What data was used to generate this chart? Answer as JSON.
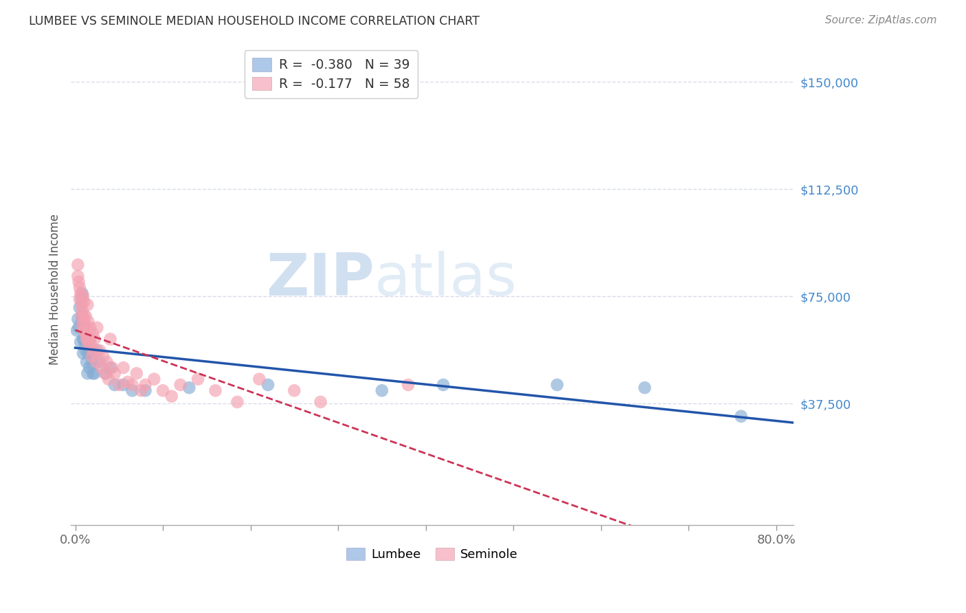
{
  "title": "LUMBEE VS SEMINOLE MEDIAN HOUSEHOLD INCOME CORRELATION CHART",
  "source": "Source: ZipAtlas.com",
  "ylabel": "Median Household Income",
  "xlim": [
    -0.005,
    0.82
  ],
  "ylim": [
    -5000,
    160000
  ],
  "yticks": [
    37500,
    75000,
    112500,
    150000
  ],
  "ytick_labels": [
    "$37,500",
    "$75,000",
    "$112,500",
    "$150,000"
  ],
  "xtick_positions": [
    0.0,
    0.1,
    0.2,
    0.3,
    0.4,
    0.5,
    0.6,
    0.7,
    0.8
  ],
  "xtick_label_left": "0.0%",
  "xtick_label_right": "80.0%",
  "lumbee_color": "#85acd4",
  "seminole_color": "#f4a0b0",
  "lumbee_legend_color": "#adc8e8",
  "seminole_legend_color": "#f8c0cc",
  "trend_lumbee_color": "#2255aa",
  "trend_seminole_color": "#cc3355",
  "r_lumbee": -0.38,
  "n_lumbee": 39,
  "r_seminole": -0.177,
  "n_seminole": 58,
  "watermark_zip": "ZIP",
  "watermark_atlas": "atlas",
  "watermark_color": "#d0e0f0",
  "lumbee_x": [
    0.002,
    0.003,
    0.004,
    0.005,
    0.006,
    0.007,
    0.007,
    0.008,
    0.008,
    0.009,
    0.009,
    0.01,
    0.01,
    0.011,
    0.012,
    0.013,
    0.014,
    0.015,
    0.016,
    0.017,
    0.018,
    0.019,
    0.02,
    0.022,
    0.025,
    0.028,
    0.035,
    0.04,
    0.045,
    0.055,
    0.065,
    0.08,
    0.13,
    0.22,
    0.35,
    0.42,
    0.55,
    0.65,
    0.76
  ],
  "lumbee_y": [
    63000,
    67000,
    64000,
    71000,
    59000,
    74000,
    66000,
    76000,
    68000,
    60000,
    55000,
    65000,
    60000,
    58000,
    56000,
    52000,
    48000,
    55000,
    50000,
    60000,
    56000,
    52000,
    48000,
    48000,
    56000,
    52000,
    48000,
    50000,
    44000,
    44000,
    42000,
    42000,
    43000,
    44000,
    42000,
    44000,
    44000,
    43000,
    33000
  ],
  "seminole_x": [
    0.003,
    0.003,
    0.004,
    0.005,
    0.005,
    0.006,
    0.007,
    0.007,
    0.008,
    0.008,
    0.009,
    0.01,
    0.01,
    0.01,
    0.011,
    0.012,
    0.012,
    0.013,
    0.014,
    0.014,
    0.015,
    0.015,
    0.016,
    0.017,
    0.018,
    0.019,
    0.02,
    0.021,
    0.022,
    0.024,
    0.025,
    0.028,
    0.03,
    0.032,
    0.034,
    0.036,
    0.038,
    0.04,
    0.042,
    0.045,
    0.05,
    0.055,
    0.06,
    0.065,
    0.07,
    0.075,
    0.08,
    0.09,
    0.1,
    0.11,
    0.12,
    0.14,
    0.16,
    0.185,
    0.21,
    0.25,
    0.28,
    0.38
  ],
  "seminole_y": [
    86000,
    82000,
    80000,
    78000,
    74000,
    76000,
    72000,
    68000,
    65000,
    70000,
    75000,
    73000,
    68000,
    63000,
    65000,
    68000,
    62000,
    60000,
    72000,
    60000,
    66000,
    58000,
    60000,
    64000,
    58000,
    54000,
    62000,
    56000,
    60000,
    52000,
    64000,
    56000,
    50000,
    54000,
    48000,
    52000,
    46000,
    60000,
    50000,
    48000,
    44000,
    50000,
    45000,
    44000,
    48000,
    42000,
    44000,
    46000,
    42000,
    40000,
    44000,
    46000,
    42000,
    38000,
    46000,
    42000,
    38000,
    44000
  ],
  "background_color": "#ffffff",
  "grid_color": "#d8dce8",
  "title_color": "#333333",
  "axis_label_color": "#555555",
  "ytick_color": "#4488cc",
  "xtick_color": "#666666"
}
